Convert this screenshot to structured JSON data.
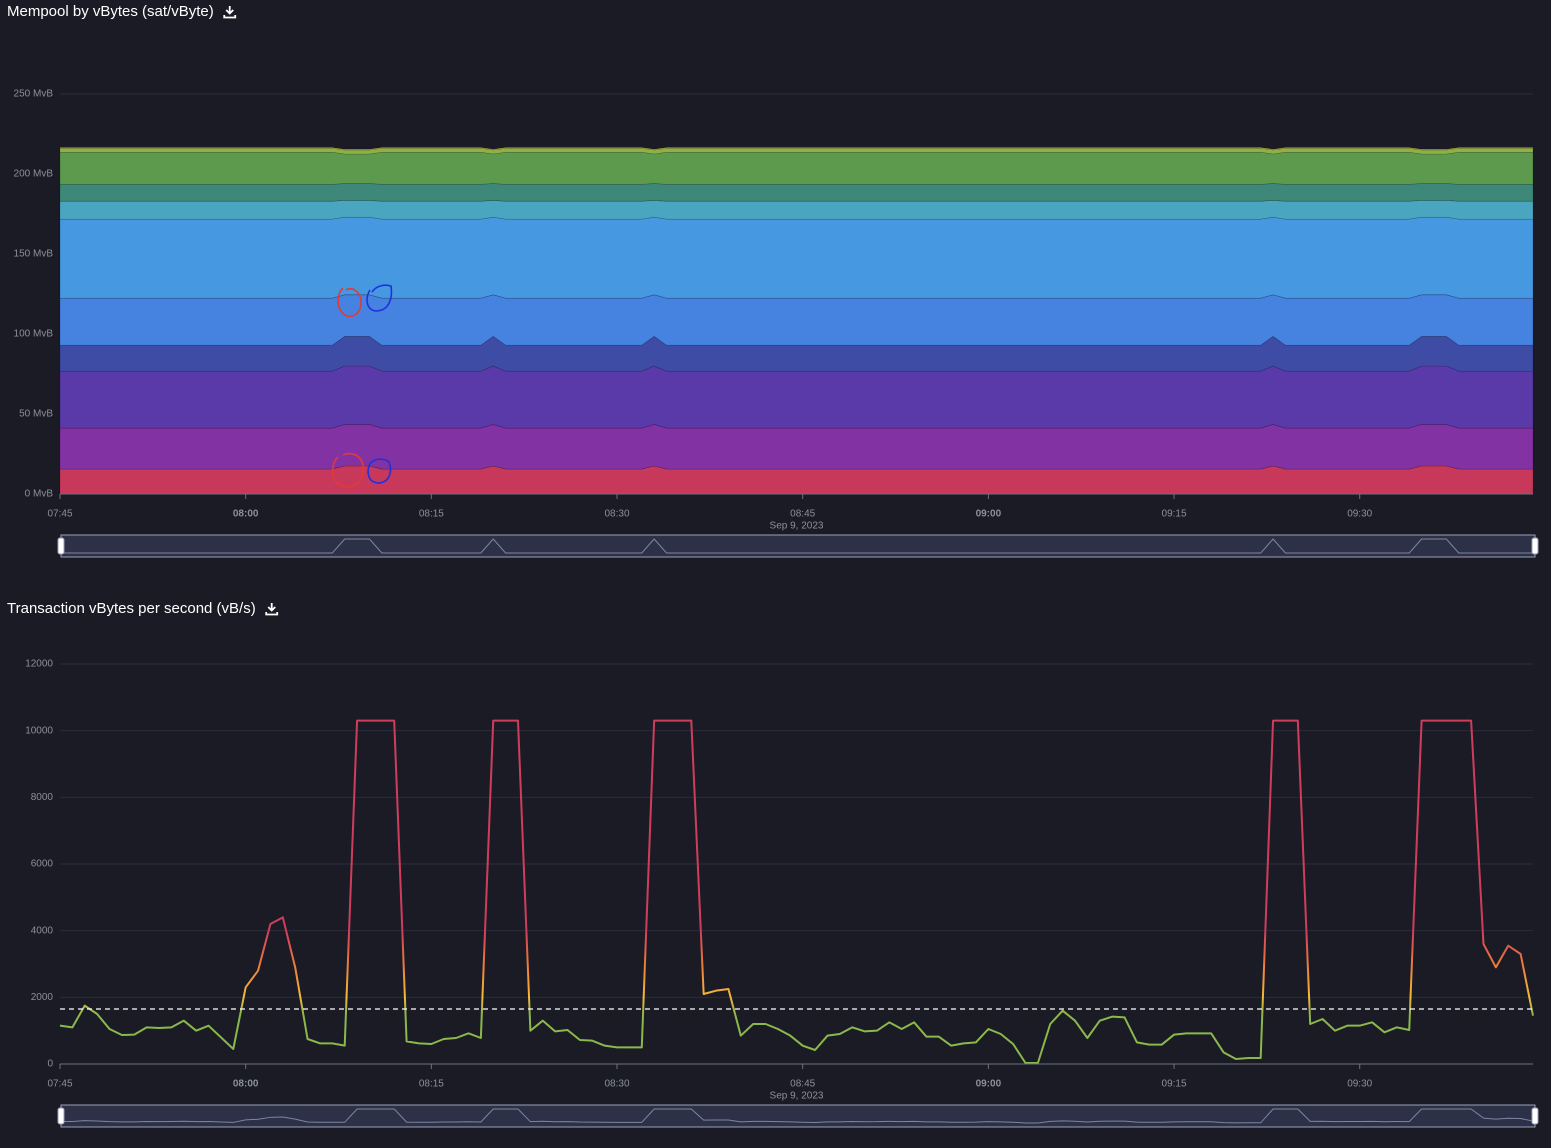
{
  "chart_data": [
    {
      "type": "area",
      "stacked": true,
      "title": "Mempool by vBytes (sat/vByte)",
      "x": [
        "07:45",
        "08:07",
        "08:08",
        "08:10",
        "08:11",
        "08:19",
        "08:20",
        "08:21",
        "08:32",
        "08:33",
        "08:34",
        "09:22",
        "09:23",
        "09:24",
        "09:34",
        "09:35",
        "09:37",
        "09:38",
        "09:44"
      ],
      "series": [
        {
          "color": "#c8385a",
          "values": [
            15.6,
            15.6,
            17.5,
            17.5,
            15.6,
            15.6,
            17.5,
            15.6,
            15.6,
            17.5,
            15.6,
            15.6,
            17.5,
            15.6,
            15.6,
            17.5,
            17.5,
            15.6,
            15.6
          ]
        },
        {
          "color": "#8232a3",
          "values": [
            25.6,
            25.6,
            26,
            26,
            25.6,
            25.6,
            26,
            25.6,
            25.6,
            26,
            25.6,
            25.6,
            26,
            25.6,
            25.6,
            26,
            26,
            25.6,
            25.6
          ]
        },
        {
          "color": "#5a3aa8",
          "values": [
            35.6,
            35.6,
            36.5,
            36.5,
            35.6,
            35.6,
            36.5,
            35.6,
            35.6,
            36.5,
            35.6,
            35.6,
            36.5,
            35.6,
            35.6,
            36.5,
            36.5,
            35.6,
            35.6
          ]
        },
        {
          "color": "#3f4ca6",
          "values": [
            16.2,
            16.2,
            18.5,
            18.5,
            16.2,
            16.2,
            18.5,
            16.2,
            16.2,
            18.5,
            16.2,
            16.2,
            18.5,
            16.2,
            16.2,
            18.5,
            18.5,
            16.2,
            16.2
          ]
        },
        {
          "color": "#4682e0",
          "values": [
            29.4,
            29.4,
            26,
            26,
            29.4,
            29.4,
            26,
            29.4,
            29.4,
            26,
            29.4,
            29.4,
            26,
            29.4,
            29.4,
            26,
            26,
            29.4,
            29.4
          ]
        },
        {
          "color": "#4698e0",
          "values": [
            49.4,
            49.4,
            48.5,
            48.5,
            49.4,
            49.4,
            48.5,
            49.4,
            49.4,
            48.5,
            49.4,
            49.4,
            48.5,
            49.4,
            49.4,
            48.5,
            48.5,
            49.4,
            49.4
          ]
        },
        {
          "color": "#4aa6c0",
          "values": [
            11.2,
            11.2,
            10.5,
            10.5,
            11.2,
            11.2,
            10.5,
            11.2,
            11.2,
            10.5,
            11.2,
            11.2,
            10.5,
            11.2,
            11.2,
            10.5,
            10.5,
            11.2,
            11.2
          ]
        },
        {
          "color": "#3d8878",
          "values": [
            10.6,
            10.6,
            10.5,
            10.5,
            10.6,
            10.6,
            10.5,
            10.6,
            10.6,
            10.5,
            10.6,
            10.6,
            10.5,
            10.6,
            10.6,
            10.5,
            10.5,
            10.6,
            10.6
          ]
        },
        {
          "color": "#5d9a4e",
          "values": [
            20,
            20,
            18.5,
            18.5,
            20,
            20,
            18.5,
            20,
            20,
            18.5,
            20,
            20,
            18.5,
            20,
            20,
            18.5,
            18.5,
            20,
            20
          ]
        },
        {
          "color": "#8fb046",
          "values": [
            2.5,
            2.5,
            2.5,
            2.5,
            2.5,
            2.5,
            2.5,
            2.5,
            2.5,
            2.5,
            2.5,
            2.5,
            2.5,
            2.5,
            2.5,
            2.5,
            2.5,
            2.5,
            2.5
          ]
        },
        {
          "color": "#d4c83a",
          "values": [
            0.5,
            0.5,
            0.5,
            0.5,
            0.5,
            0.5,
            0.5,
            0.5,
            0.5,
            0.5,
            0.5,
            0.5,
            0.5,
            0.5,
            0.5,
            0.5,
            0.5,
            0.5,
            0.5
          ]
        }
      ],
      "xlim": [
        "07:45",
        "09:44"
      ],
      "xticks": [
        "07:45",
        "08:00",
        "08:15",
        "08:30",
        "08:45",
        "09:00",
        "09:15",
        "09:30"
      ],
      "ylim": [
        0,
        250
      ],
      "yticks": [
        {
          "value": 0,
          "label": "0 MvB"
        },
        {
          "value": 50,
          "label": "50 MvB"
        },
        {
          "value": 100,
          "label": "100 MvB"
        },
        {
          "value": 150,
          "label": "150 MvB"
        },
        {
          "value": 200,
          "label": "200 MvB"
        },
        {
          "value": 250,
          "label": "250 MvB"
        }
      ],
      "date_label": "Sep 9, 2023",
      "grid": true
    },
    {
      "type": "line",
      "title": "Transaction vBytes per second (vB/s)",
      "x": [
        "07:45",
        "07:46",
        "07:47",
        "07:48",
        "07:49",
        "07:50",
        "07:51",
        "07:52",
        "07:53",
        "07:54",
        "07:55",
        "07:56",
        "07:57",
        "07:58",
        "07:59",
        "08:00",
        "08:01",
        "08:02",
        "08:03",
        "08:04",
        "08:05",
        "08:06",
        "08:07",
        "08:08",
        "08:09",
        "08:10",
        "08:11",
        "08:12",
        "08:13",
        "08:14",
        "08:15",
        "08:16",
        "08:17",
        "08:18",
        "08:19",
        "08:20",
        "08:21",
        "08:22",
        "08:23",
        "08:24",
        "08:25",
        "08:26",
        "08:27",
        "08:28",
        "08:29",
        "08:30",
        "08:31",
        "08:32",
        "08:33",
        "08:34",
        "08:35",
        "08:36",
        "08:37",
        "08:38",
        "08:39",
        "08:40",
        "08:41",
        "08:42",
        "08:43",
        "08:44",
        "08:45",
        "08:46",
        "08:47",
        "08:48",
        "08:49",
        "08:50",
        "08:51",
        "08:52",
        "08:53",
        "08:54",
        "08:55",
        "08:56",
        "08:57",
        "08:58",
        "08:59",
        "09:00",
        "09:01",
        "09:02",
        "09:03",
        "09:04",
        "09:05",
        "09:06",
        "09:07",
        "09:08",
        "09:09",
        "09:10",
        "09:11",
        "09:12",
        "09:13",
        "09:14",
        "09:15",
        "09:16",
        "09:17",
        "09:18",
        "09:19",
        "09:20",
        "09:21",
        "09:22",
        "09:23",
        "09:24",
        "09:25",
        "09:26",
        "09:27",
        "09:28",
        "09:29",
        "09:30",
        "09:31",
        "09:32",
        "09:33",
        "09:34",
        "09:35",
        "09:36",
        "09:37",
        "09:38",
        "09:39",
        "09:40",
        "09:41",
        "09:42",
        "09:43",
        "09:44"
      ],
      "values": [
        1150,
        1100,
        1750,
        1500,
        1050,
        870,
        880,
        1100,
        1080,
        1100,
        1300,
        1000,
        1150,
        800,
        450,
        2300,
        2800,
        4200,
        4400,
        2900,
        750,
        620,
        620,
        550,
        10300,
        10300,
        10300,
        10300,
        680,
        620,
        600,
        750,
        780,
        920,
        780,
        10300,
        10300,
        10300,
        1000,
        1300,
        980,
        1020,
        720,
        700,
        550,
        500,
        500,
        500,
        10300,
        10300,
        10300,
        10300,
        2100,
        2200,
        2250,
        850,
        1200,
        1200,
        1050,
        850,
        550,
        420,
        850,
        900,
        1100,
        980,
        1000,
        1250,
        1050,
        1250,
        820,
        820,
        550,
        620,
        650,
        1050,
        900,
        600,
        30,
        30,
        1200,
        1600,
        1300,
        780,
        1300,
        1420,
        1400,
        650,
        580,
        580,
        880,
        920,
        920,
        920,
        350,
        150,
        180,
        180,
        10300,
        10300,
        10300,
        1200,
        1350,
        1000,
        1150,
        1150,
        1250,
        950,
        1100,
        1020,
        10300,
        10300,
        10300,
        10300,
        10300,
        3600,
        2900,
        3550,
        3300,
        1450
      ],
      "xlim": [
        "07:45",
        "09:44"
      ],
      "xticks": [
        "07:45",
        "08:00",
        "08:15",
        "08:30",
        "08:45",
        "09:00",
        "09:15",
        "09:30"
      ],
      "ylim": [
        0,
        12000
      ],
      "yticks": [
        0,
        2000,
        4000,
        6000,
        8000,
        10000,
        12000
      ],
      "mark_line": 1650,
      "color_stops": [
        {
          "value": 0,
          "color": "#8bb84a"
        },
        {
          "value": 1500,
          "color": "#8bb84a"
        },
        {
          "value": 2000,
          "color": "#f5b93a"
        },
        {
          "value": 3000,
          "color": "#ec7a3c"
        },
        {
          "value": 4000,
          "color": "#cf3d5c"
        },
        {
          "value": 12000,
          "color": "#cf3d5c"
        }
      ],
      "date_label": "Sep 9, 2023",
      "grid": true
    }
  ]
}
